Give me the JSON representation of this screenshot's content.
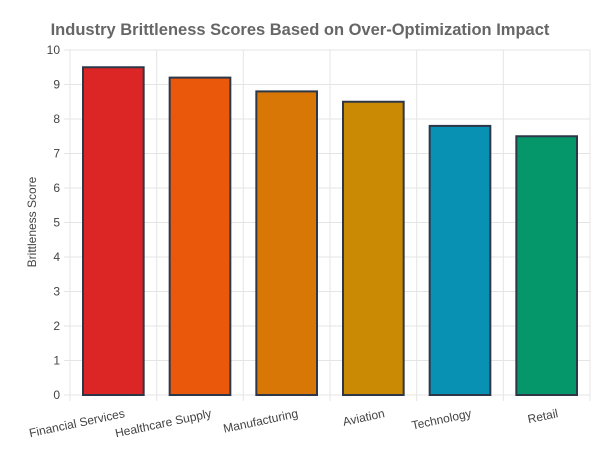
{
  "chart_data": {
    "type": "bar",
    "title": "Industry Brittleness Scores Based on Over-Optimization Impact",
    "xlabel": "",
    "ylabel": "Brittleness Score",
    "categories": [
      "Financial Services",
      "Healthcare Supply",
      "Manufacturing",
      "Aviation",
      "Technology",
      "Retail"
    ],
    "values": [
      9.5,
      9.2,
      8.8,
      8.5,
      7.8,
      7.5
    ],
    "ylim": [
      0,
      10
    ],
    "yticks": [
      0,
      1,
      2,
      3,
      4,
      5,
      6,
      7,
      8,
      9,
      10
    ],
    "grid": true,
    "legend": "none",
    "colors": [
      "#dc2626",
      "#ea580c",
      "#d97706",
      "#ca8a04",
      "#0891b2",
      "#059669"
    ],
    "bar_border_color": "#2d3748"
  }
}
